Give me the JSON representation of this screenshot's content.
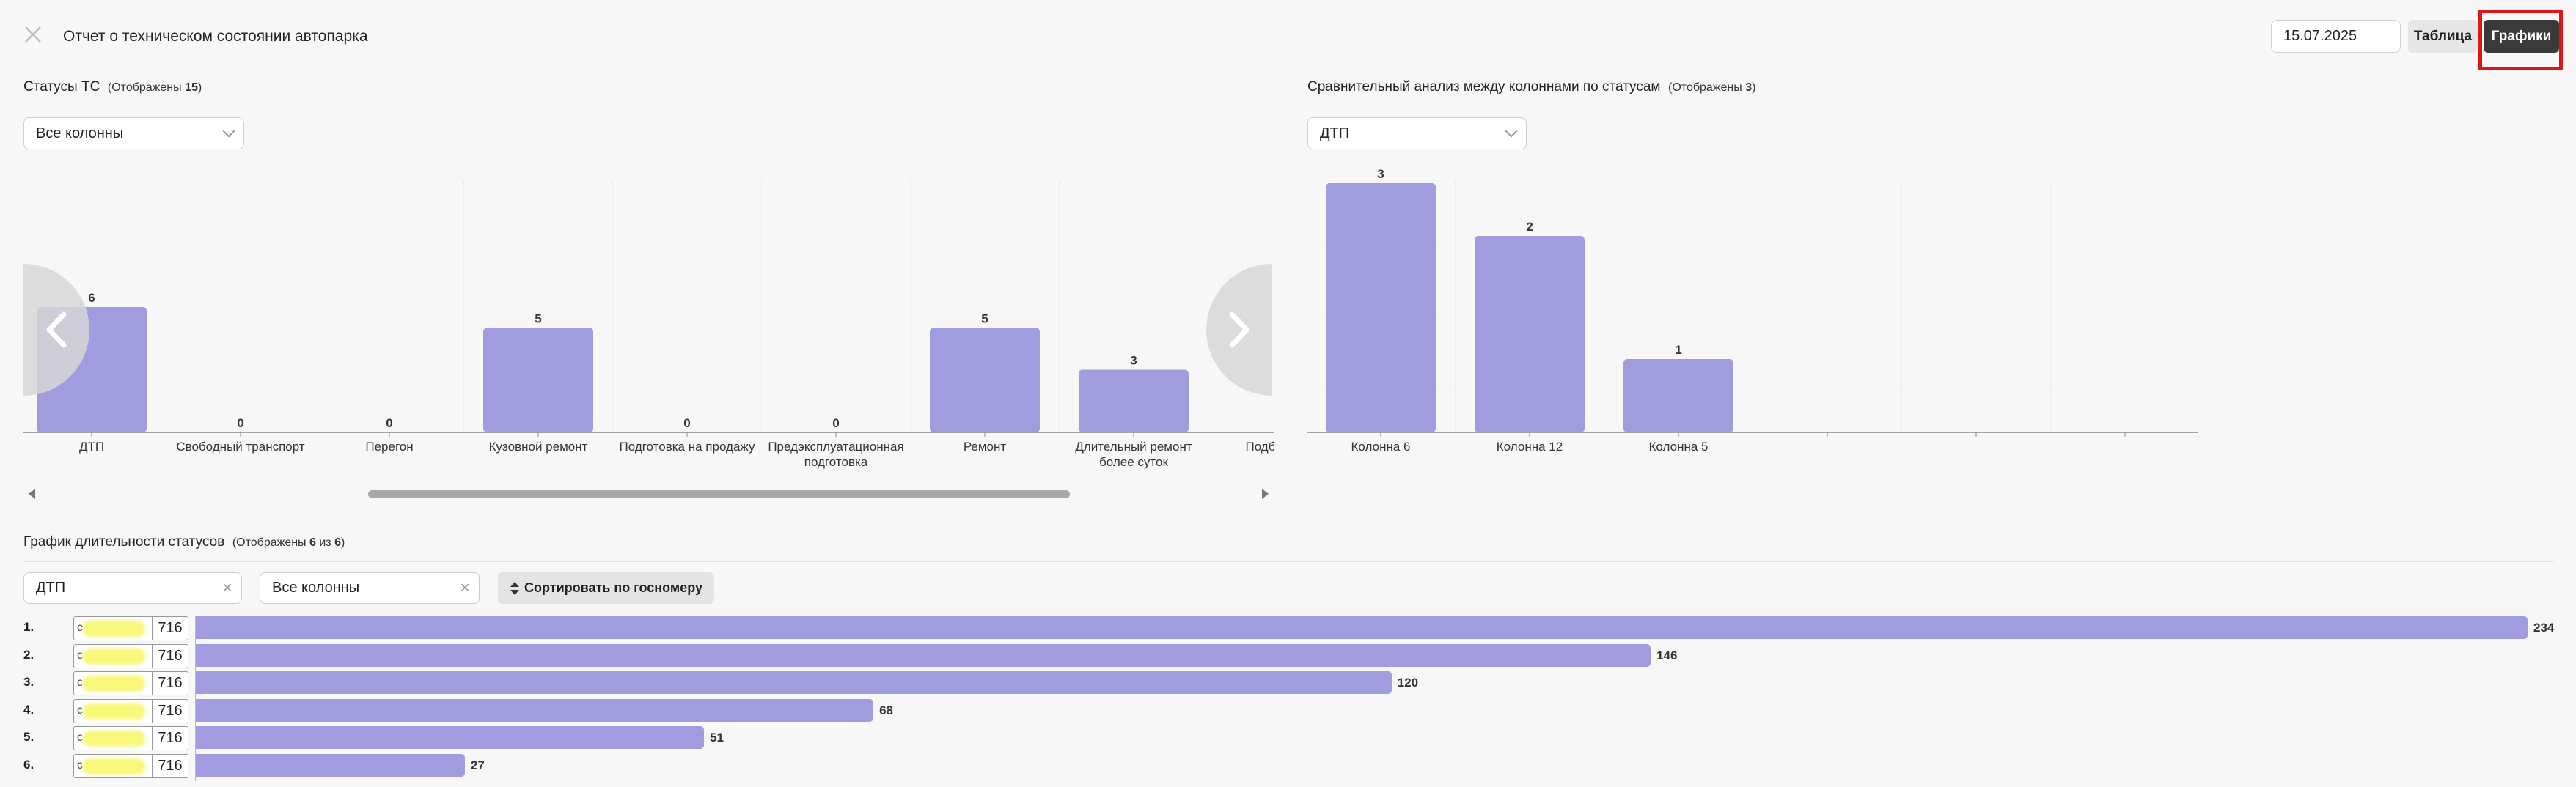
{
  "header": {
    "close_icon": "close-icon",
    "title": "Отчет о техническом состоянии автопарка",
    "date": "15.07.2025",
    "table_btn": "Таблица",
    "charts_btn": "Графики",
    "highlight_color": "#e0151b"
  },
  "status_chart": {
    "title": "Статусы ТС",
    "count_prefix": "(Отображены ",
    "count": "15",
    "count_suffix": ")",
    "filter": "Все колонны"
  },
  "compare_chart": {
    "title": "Сравнительный анализ между колоннами по статусам",
    "count_prefix": "(Отображены ",
    "count": "3",
    "count_suffix": ")",
    "filter": "ДТП"
  },
  "duration_chart": {
    "title": "График длительности статусов",
    "count_prefix": "(Отображены ",
    "count": "6",
    "count_mid": " из ",
    "total": "6",
    "count_suffix": ")",
    "filter_status": "ДТП",
    "filter_column": "Все колонны",
    "sort_btn": "Сортировать по госномеру"
  },
  "chart_data": [
    {
      "type": "bar",
      "title": "Статусы ТС",
      "categories": [
        "ДТП",
        "Свободный транспорт",
        "Перегон",
        "Кузовной ремонт",
        "Подготовка на продажу",
        "Предэксплуатационная подготовка",
        "Ремонт",
        "Длительный ремонт более суток",
        "Подбор в ТС"
      ],
      "values": [
        6,
        0,
        0,
        5,
        0,
        0,
        5,
        3,
        null
      ],
      "ylim": [
        0,
        12
      ],
      "bar_color": "#a09cde"
    },
    {
      "type": "bar",
      "title": "Сравнительный анализ между колоннами по статусам",
      "categories": [
        "Колонна 6",
        "Колонна 12",
        "Колонна 5"
      ],
      "values": [
        3,
        2,
        1
      ],
      "ylim": [
        0,
        3.3
      ],
      "bar_color": "#a09cde"
    },
    {
      "type": "bar",
      "orientation": "horizontal",
      "title": "График длительности статусов",
      "rows": [
        {
          "num": "1.",
          "plate_prefix": "с",
          "region": "716",
          "value": 234
        },
        {
          "num": "2.",
          "plate_prefix": "с",
          "region": "716",
          "value": 146
        },
        {
          "num": "3.",
          "plate_prefix": "с",
          "region": "716",
          "value": 120
        },
        {
          "num": "4.",
          "plate_prefix": "с",
          "region": "716",
          "value": 68
        },
        {
          "num": "5.",
          "plate_prefix": "с",
          "region": "716",
          "value": 51
        },
        {
          "num": "6.",
          "plate_prefix": "с",
          "region": "716",
          "value": 27
        }
      ],
      "xmax": 234,
      "bar_color": "#a09cde"
    }
  ]
}
